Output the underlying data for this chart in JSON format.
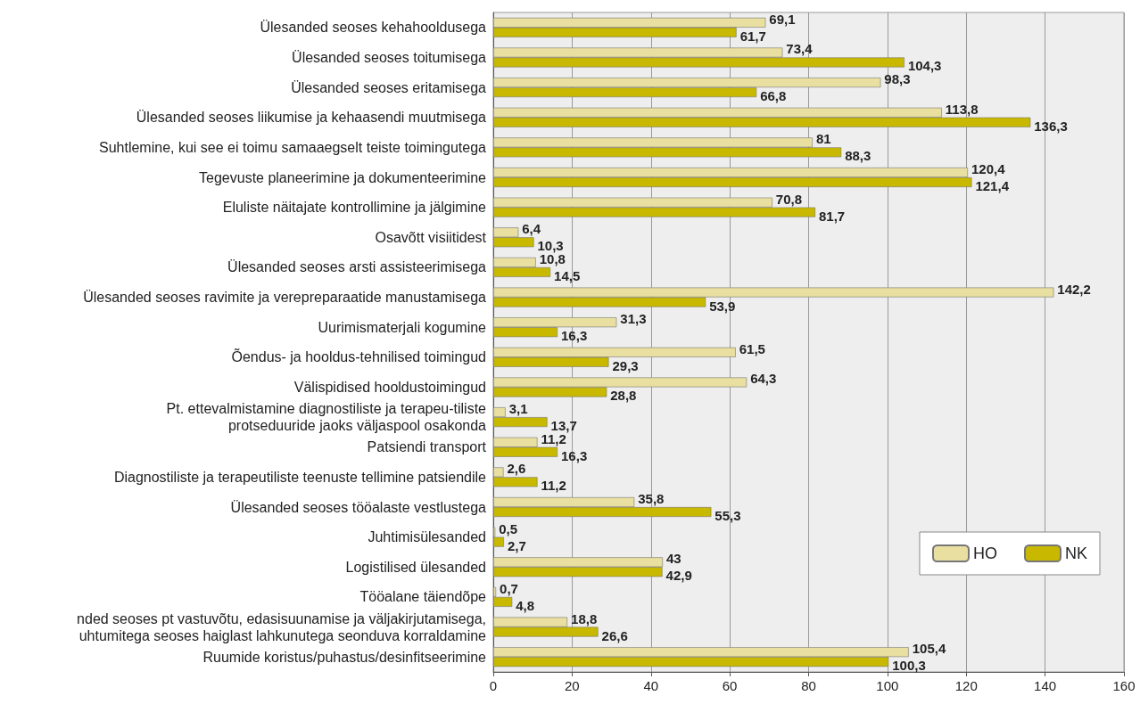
{
  "chart_data": {
    "type": "bar",
    "orientation": "horizontal",
    "categories": [
      "Ülesanded seoses kehahooldusega",
      "Ülesanded seoses toitumisega",
      "Ülesanded seoses eritamisega",
      "Ülesanded seoses liikumise ja kehaasendi muutmisega",
      "Suhtlemine, kui see ei toimu samaaegselt teiste toimingutega",
      "Tegevuste planeerimine ja dokumenteerimine",
      "Eluliste näitajate kontrollimine ja jälgimine",
      "Osavõtt visiitidest",
      "Ülesanded seoses arsti assisteerimisega",
      "Ülesanded seoses ravimite ja verepreparaatide manustamisega",
      "Uurimismaterjali kogumine",
      "Õendus- ja hooldus-tehnilised toimingud",
      "Välispidised hooldustoimingud",
      "Pt. ettevalmistamine diagnostiliste ja terapeu-tiliste\nprotseduuride jaoks väljaspool osakonda",
      "Patsiendi transport",
      "Diagnostiliste ja terapeutiliste teenuste tellimine patsiendile",
      "Ülesanded seoses tööalaste vestlustega",
      "Juhtimisülesanded",
      "Logistilised ülesanded",
      "Tööalane täiendõpe",
      "nded seoses pt vastuvõtu, edasisuunamise ja väljakirjutamisega,\nuhtumitega seoses haiglast lahkunutega seonduva korraldamine",
      "Ruumide koristus/puhastus/desinfitseerimine"
    ],
    "series": [
      {
        "name": "HO",
        "color": "#e8dfa0",
        "values": [
          69.1,
          73.4,
          98.3,
          113.8,
          81,
          120.4,
          70.8,
          6.4,
          10.8,
          142.2,
          31.3,
          61.5,
          64.3,
          3.1,
          11.2,
          2.6,
          35.8,
          0.5,
          43,
          0.7,
          18.8,
          105.4
        ],
        "value_labels": [
          "69,1",
          "73,4",
          "98,3",
          "113,8",
          "81",
          "120,4",
          "70,8",
          "6,4",
          "10,8",
          "142,2",
          "31,3",
          "61,5",
          "64,3",
          "3,1",
          "11,2",
          "2,6",
          "35,8",
          "0,5",
          "43",
          "0,7",
          "18,8",
          "105,4"
        ]
      },
      {
        "name": "NK",
        "color": "#c8b900",
        "values": [
          61.7,
          104.3,
          66.8,
          136.3,
          88.3,
          121.4,
          81.7,
          10.3,
          14.5,
          53.9,
          16.3,
          29.3,
          28.8,
          13.7,
          16.3,
          11.2,
          55.3,
          2.7,
          42.9,
          4.8,
          26.6,
          100.3
        ],
        "value_labels": [
          "61,7",
          "104,3",
          "66,8",
          "136,3",
          "88,3",
          "121,4",
          "81,7",
          "10,3",
          "14,5",
          "53,9",
          "16,3",
          "29,3",
          "28,8",
          "13,7",
          "16,3",
          "11,2",
          "55,3",
          "2,7",
          "42,9",
          "4,8",
          "26,6",
          "100,3"
        ]
      }
    ],
    "xlim": [
      0,
      160
    ],
    "xticks": [
      0,
      20,
      40,
      60,
      80,
      100,
      120,
      140,
      160
    ],
    "grid": "x",
    "legend": "bottom right"
  }
}
